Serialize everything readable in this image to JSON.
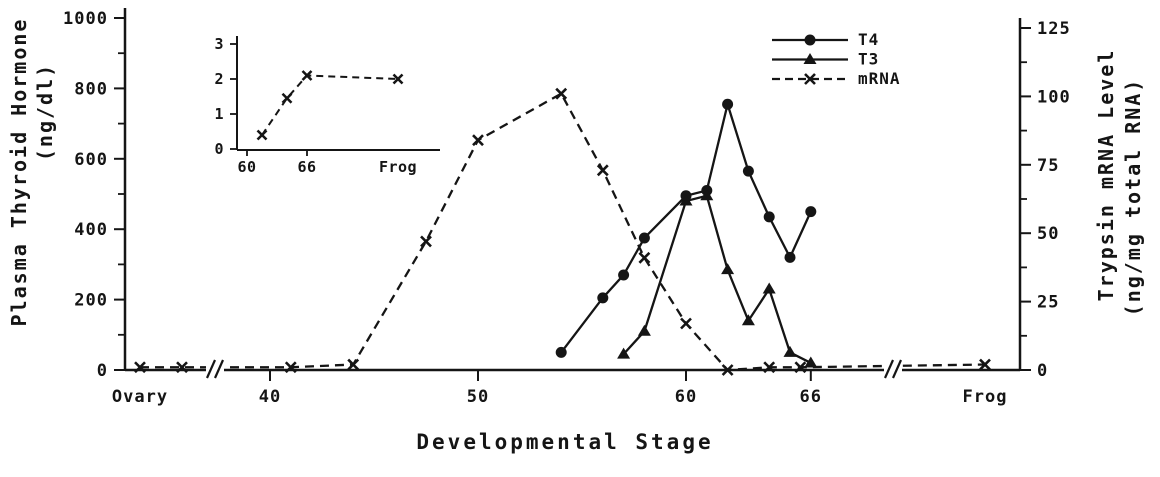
{
  "chart_data": {
    "type": "line",
    "title": "",
    "xlabel": "Developmental Stage",
    "ylabel_left": [
      "Plasma Thyroid Hormone",
      "(ng/dl)"
    ],
    "ylabel_right": [
      "Trypsin mRNA Level",
      "(ng/mg total RNA)"
    ],
    "x_ticks": [
      {
        "value": 40,
        "label": "40"
      },
      {
        "value": 50,
        "label": "50"
      },
      {
        "value": 60,
        "label": "60"
      },
      {
        "value": 66,
        "label": "66"
      }
    ],
    "x_categories": [
      {
        "key": "Ovary",
        "label": "Ovary"
      },
      {
        "key": "Frog",
        "label": "Frog"
      }
    ],
    "axis_breaks": [
      {
        "between": [
          "Ovary",
          "40"
        ]
      },
      {
        "between": [
          "66",
          "Frog"
        ]
      }
    ],
    "y_left": {
      "min": 0,
      "max": 1000,
      "ticks": [
        0,
        200,
        400,
        600,
        800,
        1000
      ]
    },
    "y_right": {
      "min": 0,
      "max": 125,
      "ticks": [
        0,
        25,
        50,
        75,
        100,
        125
      ]
    },
    "series": [
      {
        "name": "mRNA",
        "axis": "right",
        "marker": "x",
        "line_style": "dashed",
        "points": [
          [
            "Ovary",
            1
          ],
          [
            38,
            1
          ],
          [
            41,
            1
          ],
          [
            44,
            2
          ],
          [
            47.5,
            47
          ],
          [
            50,
            84
          ],
          [
            54,
            101
          ],
          [
            56,
            73
          ],
          [
            58,
            41
          ],
          [
            60,
            17
          ],
          [
            62,
            0
          ],
          [
            64,
            1
          ],
          [
            65.5,
            1
          ],
          [
            "Frog",
            2
          ]
        ]
      },
      {
        "name": "T4",
        "axis": "left",
        "marker": "circle",
        "line_style": "solid",
        "points": [
          [
            54,
            50
          ],
          [
            56,
            205
          ],
          [
            57,
            270
          ],
          [
            58,
            375
          ],
          [
            60,
            495
          ],
          [
            61,
            510
          ],
          [
            62,
            755
          ],
          [
            63,
            565
          ],
          [
            64,
            435
          ],
          [
            65,
            320
          ],
          [
            66,
            450
          ]
        ]
      },
      {
        "name": "T3",
        "axis": "left",
        "marker": "triangle",
        "line_style": "solid",
        "points": [
          [
            57,
            45
          ],
          [
            58,
            110
          ],
          [
            60,
            480
          ],
          [
            61,
            495
          ],
          [
            62,
            285
          ],
          [
            63,
            140
          ],
          [
            64,
            230
          ],
          [
            65,
            50
          ],
          [
            66,
            20
          ]
        ]
      }
    ],
    "legend": [
      {
        "label": "T4",
        "marker": "circle",
        "line_style": "solid"
      },
      {
        "label": "T3",
        "marker": "triangle",
        "line_style": "solid"
      },
      {
        "label": "mRNA",
        "marker": "x",
        "line_style": "dashed"
      }
    ],
    "inset": {
      "y_ticks": [
        0,
        1,
        2,
        3
      ],
      "x_ticks": [
        {
          "value": 60,
          "label": "60"
        },
        {
          "value": 66,
          "label": "66"
        }
      ],
      "x_category": {
        "key": "Frog",
        "label": "Frog"
      },
      "series": {
        "name": "mRNA",
        "marker": "x",
        "line_style": "dashed",
        "points": [
          [
            61.5,
            0.4
          ],
          [
            64,
            1.45
          ],
          [
            66,
            2.1
          ],
          [
            "Frog",
            2.0
          ]
        ]
      }
    },
    "ink_color": "#151515"
  }
}
